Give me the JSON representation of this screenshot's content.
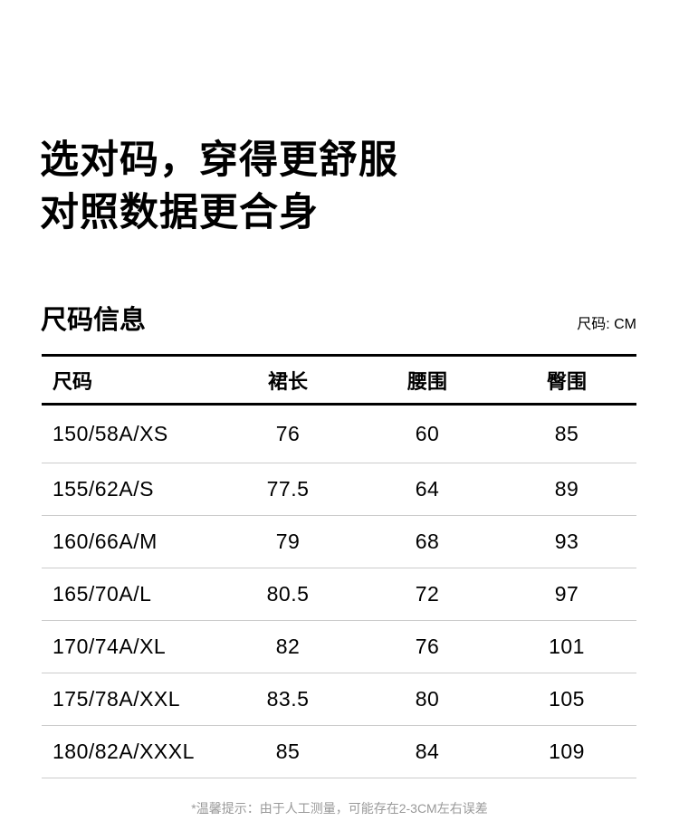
{
  "headline": {
    "line1": "选对码，穿得更舒服",
    "line2": "对照数据更合身"
  },
  "section": {
    "title": "尺码信息",
    "unit": "尺码: CM"
  },
  "table": {
    "columns": [
      "尺码",
      "裙长",
      "腰围",
      "臀围"
    ],
    "rows": [
      [
        "150/58A/XS",
        "76",
        "60",
        "85"
      ],
      [
        "155/62A/S",
        "77.5",
        "64",
        "89"
      ],
      [
        "160/66A/M",
        "79",
        "68",
        "93"
      ],
      [
        "165/70A/L",
        "80.5",
        "72",
        "97"
      ],
      [
        "170/74A/XL",
        "82",
        "76",
        "101"
      ],
      [
        "175/78A/XXL",
        "83.5",
        "80",
        "105"
      ],
      [
        "180/82A/XXXL",
        "85",
        "84",
        "109"
      ]
    ]
  },
  "footnote": "*温馨提示：由于人工测量，可能存在2-3CM左右误差",
  "colors": {
    "text": "#000000",
    "rule": "#000000",
    "separator": "#cccccc",
    "footnote": "#999999"
  }
}
